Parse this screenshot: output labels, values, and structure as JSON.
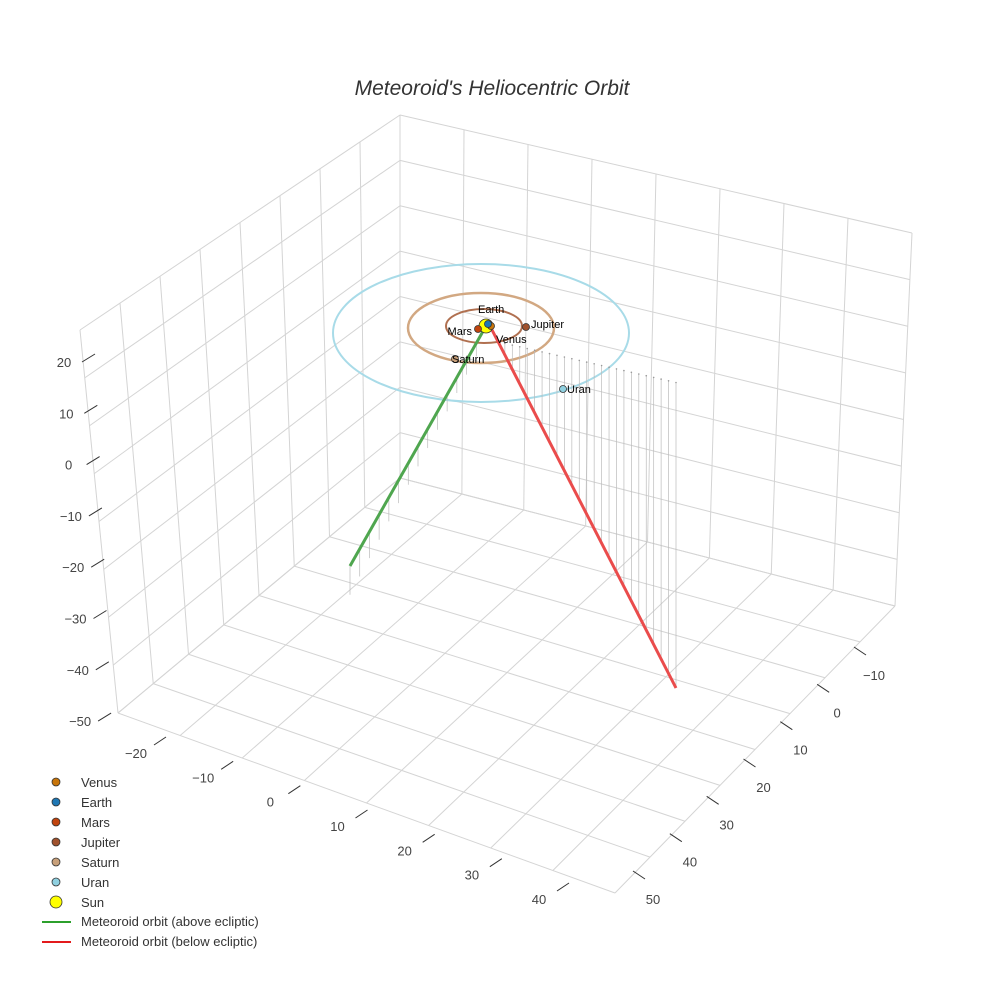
{
  "chart_data": {
    "type": "scatter3d",
    "title": "Meteoroid's Heliocentric Orbit",
    "x_ticks": [
      "−20",
      "−10",
      "0",
      "10",
      "20",
      "30",
      "40"
    ],
    "y_ticks": [
      "−10",
      "0",
      "10",
      "20",
      "30",
      "40",
      "50"
    ],
    "z_ticks": [
      "20",
      "10",
      "0",
      "−10",
      "−20",
      "−30",
      "−40",
      "−50"
    ],
    "planets": [
      {
        "name": "Venus",
        "color": "#c8750a"
      },
      {
        "name": "Earth",
        "color": "#1f77b4"
      },
      {
        "name": "Mars",
        "color": "#c1440e"
      },
      {
        "name": "Jupiter",
        "color": "#a0522d"
      },
      {
        "name": "Saturn",
        "color": "#c8a07a"
      },
      {
        "name": "Uran",
        "color": "#8fd0e0"
      },
      {
        "name": "Sun",
        "color": "#ffff00"
      }
    ],
    "orbit_colors": {
      "jupiter": "#b07050",
      "saturn": "#d2a882",
      "uran": "#a8dbe8"
    },
    "series": [
      {
        "name": "Meteoroid orbit (above ecliptic)",
        "color": "#2ca02c"
      },
      {
        "name": "Meteoroid orbit (below ecliptic)",
        "color": "#e31a1c"
      }
    ],
    "legend_position": "bottom-left"
  }
}
